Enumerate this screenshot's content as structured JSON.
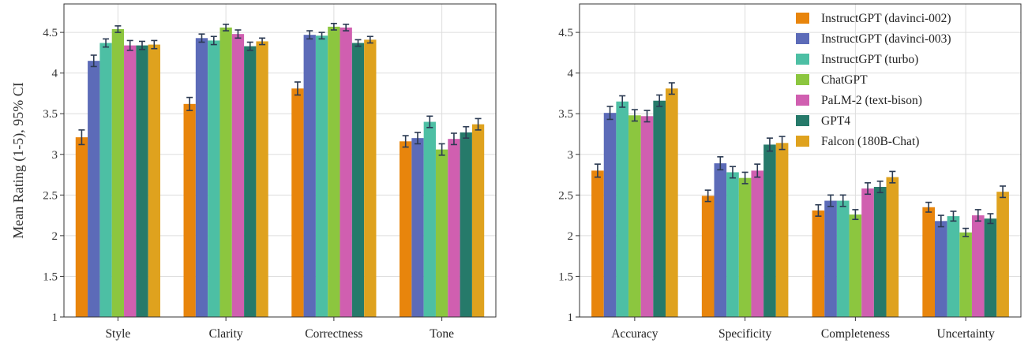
{
  "legend_position": "top-right of right panel",
  "chart_data": [
    {
      "type": "bar",
      "panel": "left",
      "ylabel": "Mean Rating (1-5), 95% CI",
      "xlabel": "",
      "ylim": [
        1,
        4.85
      ],
      "yticks": [
        1,
        1.5,
        2,
        2.5,
        3,
        3.5,
        4,
        4.5
      ],
      "ytick_labels": [
        "1",
        "1.5",
        "2",
        "2.5",
        "3",
        "3.5",
        "4",
        "4.5"
      ],
      "grid": true,
      "error_bars": "95% CI",
      "categories": [
        "Style",
        "Clarity",
        "Correctness",
        "Tone"
      ],
      "series": [
        {
          "name": "InstructGPT (davinci-002)",
          "color": "#E8850C",
          "values": [
            3.21,
            3.62,
            3.81,
            3.16
          ],
          "ci": [
            0.09,
            0.08,
            0.08,
            0.07
          ]
        },
        {
          "name": "InstructGPT (davinci-003)",
          "color": "#5C6BB8",
          "values": [
            4.15,
            4.43,
            4.47,
            3.2
          ],
          "ci": [
            0.07,
            0.05,
            0.05,
            0.07
          ]
        },
        {
          "name": "InstructGPT (turbo)",
          "color": "#4DBFA4",
          "values": [
            4.37,
            4.4,
            4.46,
            3.4
          ],
          "ci": [
            0.05,
            0.05,
            0.04,
            0.07
          ]
        },
        {
          "name": "ChatGPT",
          "color": "#8CC63F",
          "values": [
            4.54,
            4.56,
            4.57,
            3.06
          ],
          "ci": [
            0.04,
            0.04,
            0.04,
            0.07
          ]
        },
        {
          "name": "PaLM-2 (text-bison)",
          "color": "#D05FB0",
          "values": [
            4.34,
            4.48,
            4.56,
            3.19
          ],
          "ci": [
            0.06,
            0.05,
            0.04,
            0.07
          ]
        },
        {
          "name": "GPT4",
          "color": "#267A6A",
          "values": [
            4.34,
            4.33,
            4.37,
            3.27
          ],
          "ci": [
            0.05,
            0.05,
            0.04,
            0.07
          ]
        },
        {
          "name": "Falcon (180B-Chat)",
          "color": "#DFA21E",
          "values": [
            4.35,
            4.39,
            4.41,
            3.37
          ],
          "ci": [
            0.05,
            0.04,
            0.04,
            0.07
          ]
        }
      ]
    },
    {
      "type": "bar",
      "panel": "right",
      "ylabel": "",
      "xlabel": "",
      "ylim": [
        1,
        4.85
      ],
      "yticks": [
        1,
        1.5,
        2,
        2.5,
        3,
        3.5,
        4,
        4.5
      ],
      "ytick_labels": [
        "1",
        "1.5",
        "2",
        "2.5",
        "3",
        "3.5",
        "4",
        "4.5"
      ],
      "grid": true,
      "error_bars": "95% CI",
      "categories": [
        "Accuracy",
        "Specificity",
        "Completeness",
        "Uncertainty"
      ],
      "series": [
        {
          "name": "InstructGPT (davinci-002)",
          "color": "#E8850C",
          "values": [
            2.8,
            2.49,
            2.31,
            2.35
          ],
          "ci": [
            0.08,
            0.07,
            0.07,
            0.06
          ]
        },
        {
          "name": "InstructGPT (davinci-003)",
          "color": "#5C6BB8",
          "values": [
            3.51,
            2.89,
            2.43,
            2.18
          ],
          "ci": [
            0.08,
            0.08,
            0.07,
            0.07
          ]
        },
        {
          "name": "InstructGPT (turbo)",
          "color": "#4DBFA4",
          "values": [
            3.65,
            2.78,
            2.43,
            2.24
          ],
          "ci": [
            0.07,
            0.07,
            0.07,
            0.06
          ]
        },
        {
          "name": "ChatGPT",
          "color": "#8CC63F",
          "values": [
            3.48,
            2.71,
            2.26,
            2.04
          ],
          "ci": [
            0.07,
            0.07,
            0.06,
            0.05
          ]
        },
        {
          "name": "PaLM-2 (text-bison)",
          "color": "#D05FB0",
          "values": [
            3.47,
            2.8,
            2.58,
            2.25
          ],
          "ci": [
            0.07,
            0.08,
            0.07,
            0.07
          ]
        },
        {
          "name": "GPT4",
          "color": "#267A6A",
          "values": [
            3.66,
            3.12,
            2.6,
            2.21
          ],
          "ci": [
            0.07,
            0.08,
            0.07,
            0.06
          ]
        },
        {
          "name": "Falcon (180B-Chat)",
          "color": "#DFA21E",
          "values": [
            3.81,
            3.14,
            2.72,
            2.54
          ],
          "ci": [
            0.07,
            0.08,
            0.07,
            0.07
          ]
        }
      ]
    }
  ]
}
